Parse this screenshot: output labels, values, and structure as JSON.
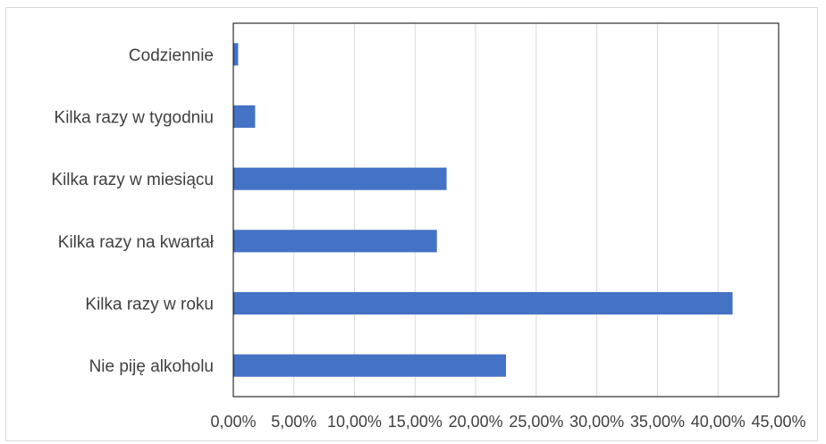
{
  "chart_data": {
    "type": "bar",
    "orientation": "horizontal",
    "categories": [
      "Codziennie",
      "Kilka razy w tygodniu",
      "Kilka razy w miesiącu",
      "Kilka razy na kwartał",
      "Kilka razy w roku",
      "Nie piję alkoholu"
    ],
    "values": [
      0.4,
      1.8,
      17.6,
      16.8,
      41.2,
      22.5
    ],
    "x_ticks": [
      "0,00%",
      "5,00%",
      "10,00%",
      "15,00%",
      "20,00%",
      "25,00%",
      "30,00%",
      "35,00%",
      "40,00%",
      "45,00%"
    ],
    "xlim": [
      0,
      45
    ],
    "grid": true,
    "legend": "none",
    "bar_color": "#4472c4",
    "grid_color": "#d9d9d9",
    "frame_color": "#000000"
  }
}
